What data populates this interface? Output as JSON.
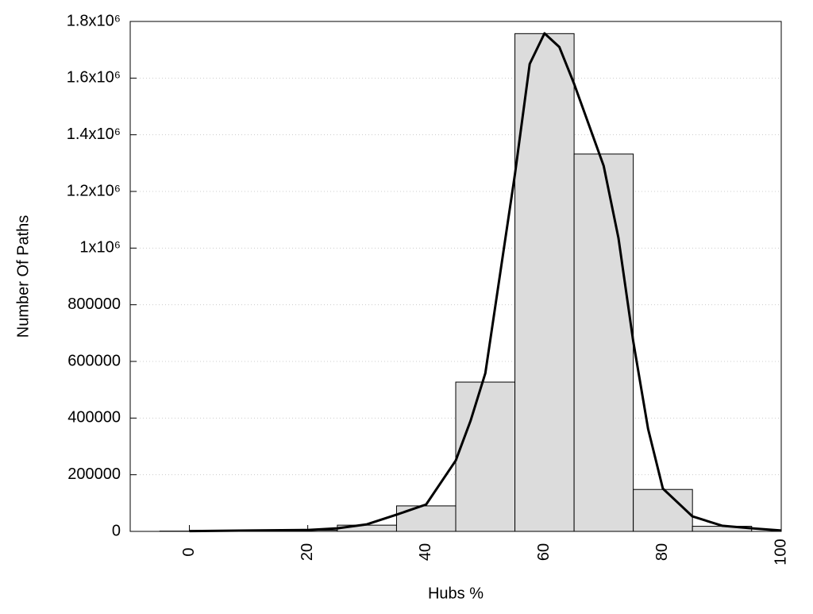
{
  "chart_data": {
    "type": "histogram",
    "x_label": "Hubs %",
    "y_label": "Number Of Paths",
    "bins": [
      -5,
      5,
      15,
      25,
      35,
      45,
      55,
      65,
      75,
      85,
      95
    ],
    "values": [
      1000,
      2000,
      4000,
      22000,
      90000,
      527000,
      1757000,
      1332000,
      148000,
      18000
    ],
    "color": "#dcdcdc",
    "overlay": {
      "type": "line",
      "color": "#000000",
      "x": [
        0,
        10,
        20,
        25,
        30,
        35,
        40,
        45,
        47.5,
        50,
        55,
        57.5,
        60,
        62.5,
        65,
        70,
        72.5,
        75,
        77.5,
        80,
        85,
        90,
        95,
        100
      ],
      "values": [
        1000,
        3000,
        5000,
        11000,
        25000,
        59000,
        95000,
        250000,
        390000,
        558000,
        1260000,
        1650000,
        1758000,
        1710000,
        1580000,
        1290000,
        1035000,
        670000,
        362000,
        151000,
        53000,
        20000,
        11000,
        3000
      ]
    },
    "xlim": [
      -10,
      100
    ],
    "xticks": [
      0,
      20,
      40,
      60,
      80,
      100
    ],
    "ylim": [
      0,
      1800000
    ],
    "yticks": [
      0,
      200000,
      400000,
      600000,
      800000,
      {
        "value": 1000000,
        "label": "1x10⁶"
      },
      {
        "value": 1200000,
        "label": "1.2x10⁶"
      },
      {
        "value": 1400000,
        "label": "1.4x10⁶"
      },
      {
        "value": 1600000,
        "label": "1.6x10⁶"
      },
      {
        "value": 1800000,
        "label": "1.8x10⁶"
      }
    ],
    "grid": true
  }
}
